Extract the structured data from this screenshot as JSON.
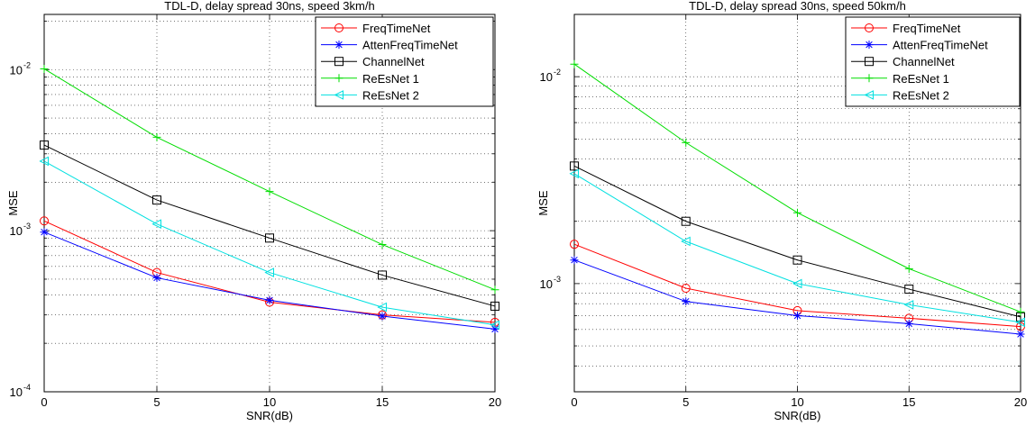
{
  "chart_data": [
    {
      "type": "line",
      "title": "TDL-D, delay spread 30ns, speed 3km/h",
      "xlabel": "SNR(dB)",
      "ylabel": "MSE",
      "yscale": "log",
      "x": [
        0,
        5,
        10,
        15,
        20
      ],
      "xticks": [
        "0",
        "5",
        "10",
        "15",
        "20"
      ],
      "xlim": [
        0,
        20
      ],
      "ylim": [
        0.0001,
        0.022
      ],
      "yticks": [
        {
          "value": 0.0001,
          "base": "10",
          "exp": "-4"
        },
        {
          "value": 0.001,
          "base": "10",
          "exp": "-3"
        },
        {
          "value": 0.01,
          "base": "10",
          "exp": "-2"
        }
      ],
      "grid": true,
      "legend_position": "top-right",
      "series": [
        {
          "name": "FreqTimeNet",
          "color": "#ff0000",
          "marker": "circle",
          "values": [
            0.00115,
            0.00055,
            0.00036,
            0.0003,
            0.00027
          ]
        },
        {
          "name": "AttenFreqTimeNet",
          "color": "#0000ff",
          "marker": "asterisk",
          "values": [
            0.00098,
            0.00051,
            0.00037,
            0.000295,
            0.000245
          ]
        },
        {
          "name": "ChannelNet",
          "color": "#000000",
          "marker": "square",
          "values": [
            0.0034,
            0.00155,
            0.0009,
            0.00053,
            0.00034
          ]
        },
        {
          "name": "ReEsNet 1",
          "color": "#00dd00",
          "marker": "plus",
          "values": [
            0.0101,
            0.0038,
            0.00175,
            0.00082,
            0.00043
          ]
        },
        {
          "name": "ReEsNet 2",
          "color": "#00e0e0",
          "marker": "triangle-left",
          "values": [
            0.0027,
            0.0011,
            0.00055,
            0.000335,
            0.00026
          ]
        }
      ]
    },
    {
      "type": "line",
      "title": "TDL-D, delay spread 30ns, speed 50km/h",
      "xlabel": "SNR(dB)",
      "ylabel": "MSE",
      "yscale": "log",
      "x": [
        0,
        5,
        10,
        15,
        20
      ],
      "xticks": [
        "0",
        "5",
        "10",
        "15",
        "20"
      ],
      "xlim": [
        0,
        20
      ],
      "ylim": [
        0.0003,
        0.02
      ],
      "yticks": [
        {
          "value": 0.001,
          "base": "10",
          "exp": "-3"
        },
        {
          "value": 0.01,
          "base": "10",
          "exp": "-2"
        }
      ],
      "grid": true,
      "legend_position": "top-right",
      "series": [
        {
          "name": "FreqTimeNet",
          "color": "#ff0000",
          "marker": "circle",
          "values": [
            0.00155,
            0.00095,
            0.00074,
            0.00068,
            0.00062
          ]
        },
        {
          "name": "AttenFreqTimeNet",
          "color": "#0000ff",
          "marker": "asterisk",
          "values": [
            0.0013,
            0.00082,
            0.0007,
            0.00064,
            0.00057
          ]
        },
        {
          "name": "ChannelNet",
          "color": "#000000",
          "marker": "square",
          "values": [
            0.0037,
            0.002,
            0.0013,
            0.00094,
            0.00069
          ]
        },
        {
          "name": "ReEsNet 1",
          "color": "#00dd00",
          "marker": "plus",
          "values": [
            0.0115,
            0.0048,
            0.0022,
            0.00118,
            0.00073
          ]
        },
        {
          "name": "ReEsNet 2",
          "color": "#00e0e0",
          "marker": "triangle-left",
          "values": [
            0.0034,
            0.0016,
            0.001,
            0.00079,
            0.00065
          ]
        }
      ]
    }
  ]
}
